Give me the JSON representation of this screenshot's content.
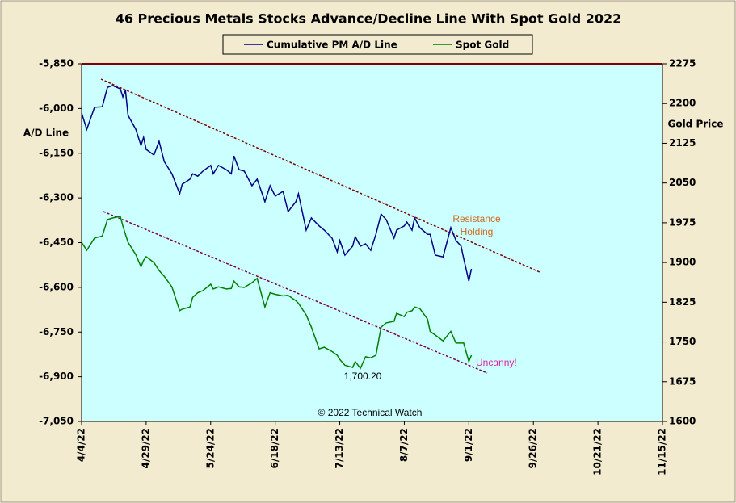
{
  "chart_data": {
    "type": "line",
    "title": "46 Precious Metals Stocks Advance/Decline Line With Spot Gold 2022",
    "y_label": "A/D Line",
    "y2_label": "Gold Price",
    "x": [
      "4/4/22",
      "4/6/22",
      "4/9/22",
      "4/12/22",
      "4/14/22",
      "4/16/22",
      "4/19/22",
      "4/20/22",
      "4/21/22",
      "4/22/22",
      "4/25/22",
      "4/27/22",
      "4/28/22",
      "4/29/22",
      "5/2/22",
      "5/4/22",
      "5/6/22",
      "5/9/22",
      "5/12/22",
      "5/13/22",
      "5/16/22",
      "5/17/22",
      "5/19/22",
      "5/21/22",
      "5/24/22",
      "5/25/22",
      "5/27/22",
      "5/30/22",
      "6/1/22",
      "6/2/22",
      "6/4/22",
      "6/6/22",
      "6/9/22",
      "6/11/22",
      "6/14/22",
      "6/16/22",
      "6/18/22",
      "6/21/22",
      "6/23/22",
      "6/26/22",
      "6/27/22",
      "6/30/22",
      "7/2/22",
      "7/5/22",
      "7/7/22",
      "7/10/22",
      "7/12/22",
      "7/13/22",
      "7/15/22",
      "7/18/22",
      "7/19/22",
      "7/21/22",
      "7/23/22",
      "7/25/22",
      "7/27/22",
      "7/29/22",
      "7/31/22",
      "8/3/22",
      "8/4/22",
      "8/7/22",
      "8/8/22",
      "8/10/22",
      "8/11/22",
      "8/13/22",
      "8/16/22",
      "8/17/22",
      "8/19/22",
      "8/22/22",
      "8/25/22",
      "8/27/22",
      "8/29/22",
      "8/30/22",
      "9/1/22",
      "9/2/22"
    ],
    "series": [
      {
        "name": "Cumulative PM A/D Line",
        "color": "#000080",
        "axis": "y",
        "values": [
          -6015,
          -6070,
          -5996,
          -5994,
          -5929,
          -5923,
          -5934,
          -5961,
          -5939,
          -6023,
          -6070,
          -6124,
          -6097,
          -6137,
          -6156,
          -6110,
          -6178,
          -6219,
          -6286,
          -6254,
          -6237,
          -6219,
          -6227,
          -6210,
          -6191,
          -6219,
          -6191,
          -6205,
          -6219,
          -6159,
          -6205,
          -6210,
          -6259,
          -6237,
          -6313,
          -6259,
          -6294,
          -6278,
          -6346,
          -6313,
          -6286,
          -6408,
          -6367,
          -6394,
          -6408,
          -6435,
          -6481,
          -6443,
          -6492,
          -6462,
          -6430,
          -6462,
          -6454,
          -6476,
          -6422,
          -6354,
          -6373,
          -6435,
          -6408,
          -6394,
          -6381,
          -6408,
          -6367,
          -6400,
          -6422,
          -6422,
          -6492,
          -6498,
          -6400,
          -6443,
          -6462,
          -6503,
          -6579,
          -6538
        ]
      },
      {
        "name": "Spot Gold",
        "color": "#008000",
        "axis": "y2",
        "values": [
          1938,
          1923,
          1946,
          1950,
          1981,
          1984,
          1987,
          1969,
          1953,
          1938,
          1915,
          1892,
          1904,
          1911,
          1900,
          1885,
          1874,
          1854,
          1809,
          1812,
          1816,
          1834,
          1843,
          1847,
          1859,
          1850,
          1854,
          1850,
          1851,
          1865,
          1854,
          1853,
          1862,
          1870,
          1816,
          1843,
          1840,
          1837,
          1838,
          1828,
          1823,
          1801,
          1778,
          1737,
          1740,
          1732,
          1725,
          1717,
          1706,
          1702,
          1713,
          1700.2,
          1722,
          1720,
          1725,
          1778,
          1786,
          1789,
          1804,
          1798,
          1806,
          1809,
          1816,
          1813,
          1793,
          1770,
          1763,
          1752,
          1770,
          1748,
          1748,
          1748,
          1713,
          1725
        ]
      }
    ],
    "xlim": [
      "4/4/22",
      "11/15/22"
    ],
    "xticks": [
      "4/4/22",
      "4/29/22",
      "5/24/22",
      "6/18/22",
      "7/13/22",
      "8/7/22",
      "9/1/22",
      "9/26/22",
      "10/21/22",
      "11/15/22"
    ],
    "ylim": [
      -7050,
      -5850
    ],
    "yticks": [
      {
        "value": -5850,
        "label": "-5,850"
      },
      {
        "value": -6000,
        "label": "-6,000"
      },
      {
        "value": -6150,
        "label": "-6,150"
      },
      {
        "value": -6300,
        "label": "-6,300"
      },
      {
        "value": -6450,
        "label": "-6,450"
      },
      {
        "value": -6600,
        "label": "-6,600"
      },
      {
        "value": -6750,
        "label": "-6,750"
      },
      {
        "value": -6900,
        "label": "-6,900"
      },
      {
        "value": -7050,
        "label": "-7,050"
      }
    ],
    "y2lim": [
      1600,
      2275
    ],
    "y2ticks": [
      2275,
      2200,
      2125,
      2050,
      1975,
      1900,
      1825,
      1750,
      1675,
      1600
    ],
    "grid": false,
    "legend": "top",
    "annotations": [
      "Resistance",
      "Holding",
      "Uncanny!",
      "1,700.20",
      "© 2022 Technical Watch"
    ]
  }
}
